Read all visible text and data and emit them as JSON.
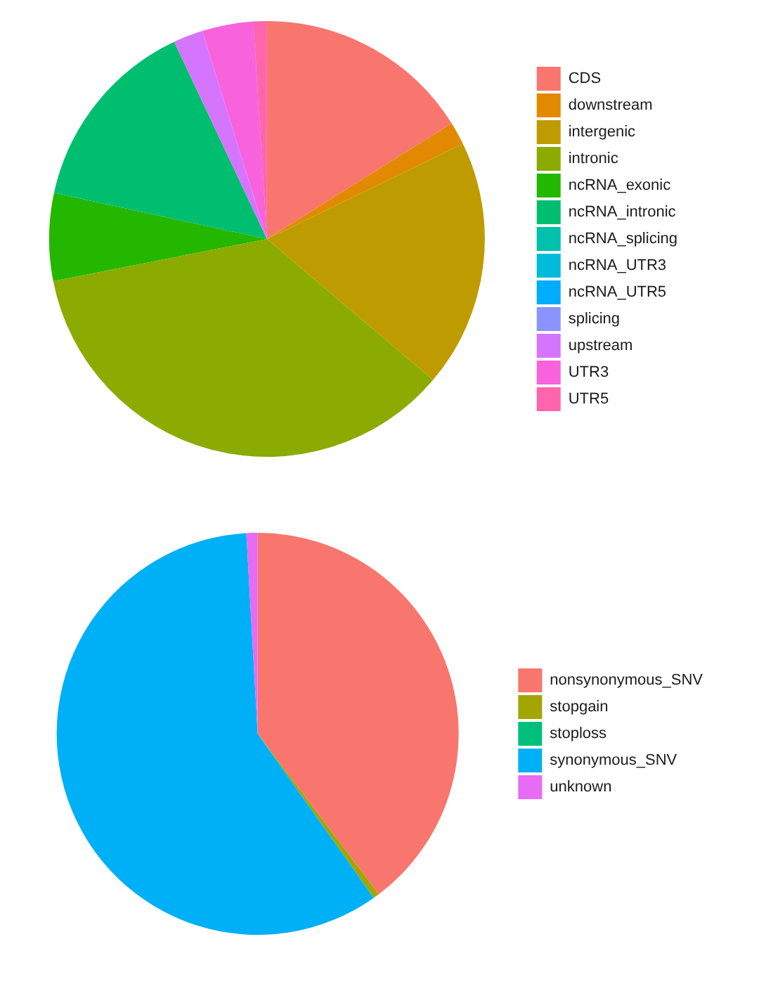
{
  "chart_data": [
    {
      "type": "pie",
      "categories": [
        "CDS",
        "downstream",
        "intergenic",
        "intronic",
        "ncRNA_exonic",
        "ncRNA_intronic",
        "ncRNA_splicing",
        "ncRNA_UTR3",
        "ncRNA_UTR5",
        "splicing",
        "upstream",
        "UTR3",
        "UTR5"
      ],
      "values": [
        16.1,
        1.7,
        18.4,
        35.7,
        6.5,
        14.6,
        0,
        0,
        0,
        0,
        2.2,
        3.8,
        1.0
      ],
      "colors": [
        "#f8766d",
        "#e18a00",
        "#be9c00",
        "#8cab00",
        "#24b700",
        "#00be70",
        "#00c1ab",
        "#00bbda",
        "#00acfc",
        "#8b93ff",
        "#d575fe",
        "#f962dd",
        "#ff65ac"
      ],
      "legend": "right"
    },
    {
      "type": "pie",
      "categories": [
        "nonsynonymous_SNV",
        "stopgain",
        "stoploss",
        "synonymous_SNV",
        "unknown"
      ],
      "values": [
        39.7,
        0.5,
        0,
        58.9,
        0.9
      ],
      "colors": [
        "#f8766d",
        "#a3a500",
        "#00bf7d",
        "#00b0f6",
        "#e76bf3"
      ],
      "legend": "right"
    }
  ]
}
